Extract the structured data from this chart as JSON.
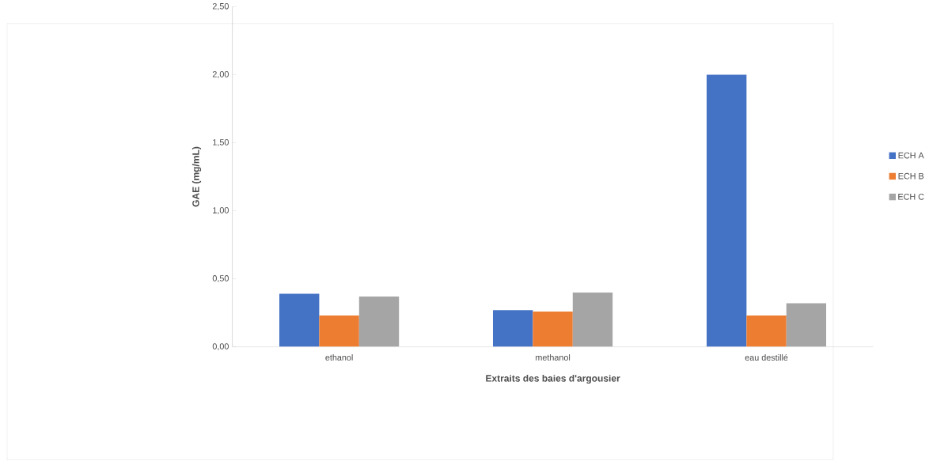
{
  "chart_data": {
    "type": "bar",
    "xlabel": "Extraits des baies d'argousier",
    "ylabel": "GAE (mg/mL)",
    "categories": [
      "ethanol",
      "methanol",
      "eau destillé"
    ],
    "series": [
      {
        "name": "ECH A",
        "color": "#4472c4",
        "values": [
          0.39,
          0.27,
          2.0
        ]
      },
      {
        "name": "ECH B",
        "color": "#ed7d31",
        "values": [
          0.23,
          0.26,
          0.23
        ]
      },
      {
        "name": "ECH C",
        "color": "#a5a5a5",
        "values": [
          0.37,
          0.4,
          0.32
        ]
      }
    ],
    "ylim": [
      0,
      2.5
    ],
    "yticks": [
      {
        "value": 0,
        "label": "0,00"
      },
      {
        "value": 0.5,
        "label": "0,50"
      },
      {
        "value": 1,
        "label": "1,00"
      },
      {
        "value": 1.5,
        "label": "1,50"
      },
      {
        "value": 2,
        "label": "2,00"
      },
      {
        "value": 2.5,
        "label": "2,50"
      }
    ],
    "grid": false,
    "legend": "right"
  }
}
